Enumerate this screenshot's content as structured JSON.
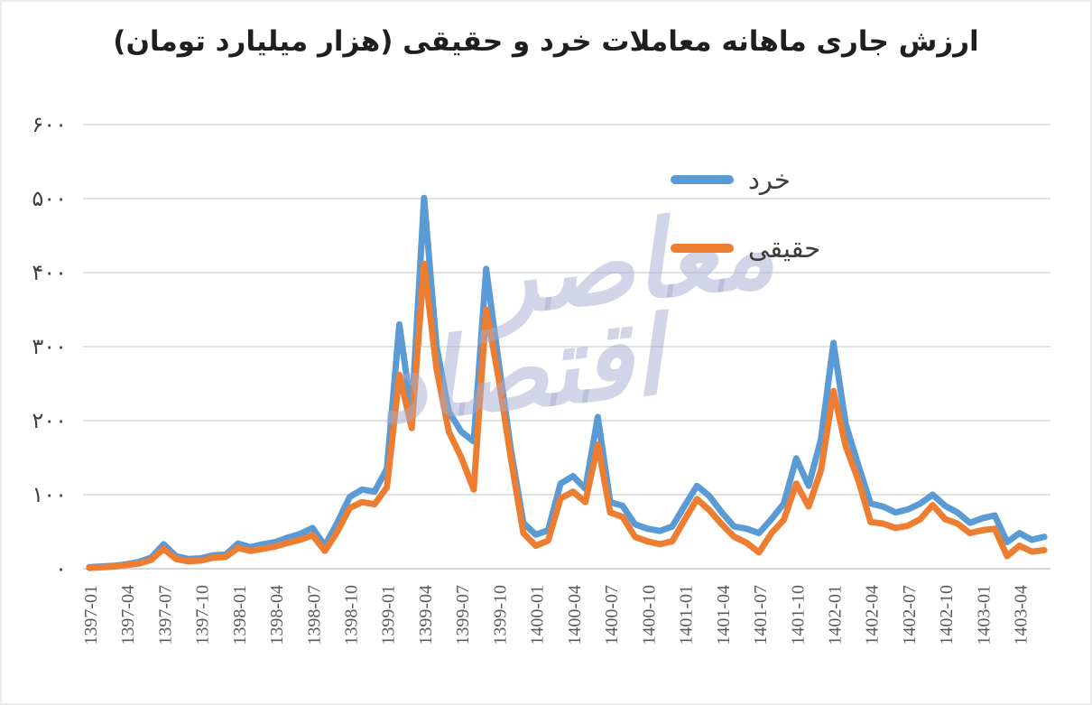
{
  "title": "ارزش جاری ماهانه معاملات خرد و حقیقی (هزار میلیارد تومان)",
  "watermark": {
    "text": "اقتصاد معاصر",
    "word_top": "معاصر",
    "word_bottom": "اقتصاد"
  },
  "legend": {
    "items": [
      {
        "label": "خرد",
        "color": "#5B9BD5"
      },
      {
        "label": "حقیقی",
        "color": "#ED7D31"
      }
    ]
  },
  "y_axis": {
    "labels": [
      "۶۰۰",
      "۵۰۰",
      "۴۰۰",
      "۳۰۰",
      "۲۰۰",
      "۱۰۰",
      "۰"
    ],
    "values": [
      600,
      500,
      400,
      300,
      200,
      100,
      0
    ]
  },
  "colors": {
    "gridline": "#d9d9d9",
    "axis_line": "#c8c8c8",
    "y_label": "#404040",
    "x_label": "#595959"
  },
  "chart_data": {
    "type": "line",
    "title": "ارزش جاری ماهانه معاملات خرد و حقیقی (هزار میلیارد تومان)",
    "ylim": [
      0,
      600
    ],
    "grid": true,
    "legend_position": "inside-top-right",
    "x_tick_every": 3,
    "x": [
      "1397-01",
      "1397-02",
      "1397-03",
      "1397-04",
      "1397-05",
      "1397-06",
      "1397-07",
      "1397-08",
      "1397-09",
      "1397-10",
      "1397-11",
      "1397-12",
      "1398-01",
      "1398-02",
      "1398-03",
      "1398-04",
      "1398-05",
      "1398-06",
      "1398-07",
      "1398-08",
      "1398-09",
      "1398-10",
      "1398-11",
      "1398-12",
      "1399-01",
      "1399-02",
      "1399-03",
      "1399-04",
      "1399-05",
      "1399-06",
      "1399-07",
      "1399-08",
      "1399-09",
      "1399-10",
      "1399-11",
      "1399-12",
      "1400-01",
      "1400-02",
      "1400-03",
      "1400-04",
      "1400-05",
      "1400-06",
      "1400-07",
      "1400-08",
      "1400-09",
      "1400-10",
      "1400-11",
      "1400-12",
      "1401-01",
      "1401-02",
      "1401-03",
      "1401-04",
      "1401-05",
      "1401-06",
      "1401-07",
      "1401-08",
      "1401-09",
      "1401-10",
      "1401-11",
      "1401-12",
      "1402-01",
      "1402-02",
      "1402-03",
      "1402-04",
      "1402-05",
      "1402-06",
      "1402-07",
      "1402-08",
      "1402-09",
      "1402-10",
      "1402-11",
      "1402-12",
      "1403-01",
      "1403-02",
      "1403-03",
      "1403-04",
      "1403-05",
      "1403-06"
    ],
    "series": [
      {
        "name": "خرد",
        "color": "#5B9BD5",
        "values": [
          2,
          3,
          4,
          6,
          9,
          15,
          33,
          17,
          13,
          14,
          18,
          19,
          34,
          29,
          33,
          36,
          42,
          47,
          55,
          31,
          62,
          97,
          107,
          104,
          135,
          330,
          210,
          501,
          300,
          212,
          185,
          172,
          405,
          280,
          160,
          62,
          46,
          52,
          115,
          125,
          108,
          205,
          90,
          85,
          60,
          54,
          51,
          57,
          85,
          112,
          98,
          76,
          57,
          54,
          48,
          67,
          88,
          149,
          112,
          175,
          305,
          195,
          140,
          88,
          84,
          76,
          80,
          88,
          100,
          85,
          76,
          62,
          68,
          72,
          36,
          48,
          39,
          43
        ]
      },
      {
        "name": "حقیقی",
        "color": "#ED7D31",
        "values": [
          1,
          2,
          3,
          5,
          7,
          12,
          27,
          13,
          10,
          11,
          15,
          16,
          28,
          24,
          27,
          30,
          35,
          39,
          45,
          24,
          50,
          82,
          90,
          87,
          110,
          262,
          190,
          412,
          270,
          185,
          150,
          107,
          350,
          258,
          148,
          48,
          31,
          38,
          95,
          104,
          90,
          168,
          76,
          70,
          43,
          37,
          33,
          37,
          66,
          94,
          79,
          60,
          43,
          35,
          22,
          48,
          66,
          115,
          84,
          133,
          240,
          165,
          120,
          63,
          61,
          55,
          58,
          67,
          86,
          67,
          61,
          48,
          52,
          54,
          17,
          31,
          23,
          25
        ]
      }
    ]
  }
}
